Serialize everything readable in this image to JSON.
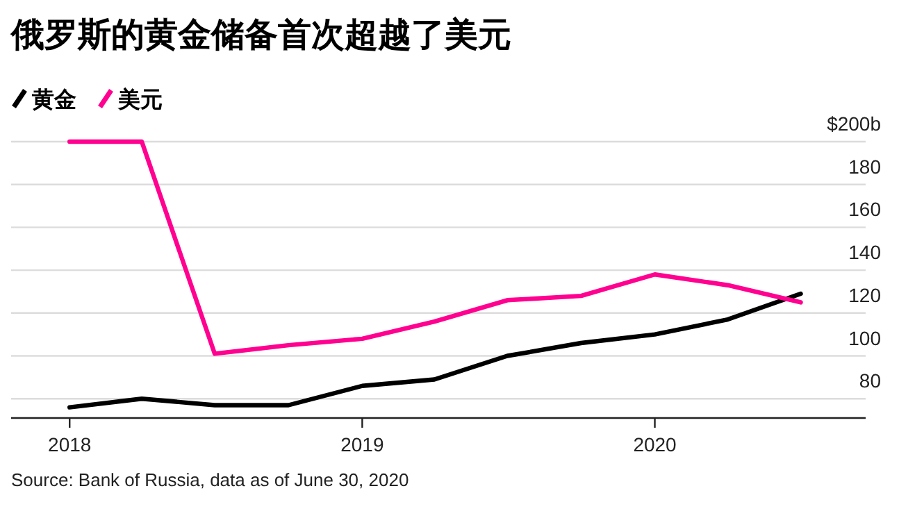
{
  "chart_data": {
    "type": "line",
    "title": "俄罗斯的黄金储备首次超越了美元",
    "x": [
      "2018-01",
      "2018-04",
      "2018-07",
      "2018-10",
      "2019-01",
      "2019-04",
      "2019-07",
      "2019-10",
      "2020-01",
      "2020-04",
      "2020-07"
    ],
    "series": [
      {
        "name": "黄金",
        "color": "#000000",
        "values": [
          76,
          80,
          77,
          77,
          86,
          89,
          100,
          106,
          110,
          117,
          129
        ]
      },
      {
        "name": "美元",
        "color": "#ff0090",
        "values": [
          200,
          200,
          101,
          105,
          108,
          116,
          126,
          128,
          138,
          133,
          125
        ]
      }
    ],
    "xlim": [
      "2017-10-20",
      "2020-09-20"
    ],
    "xticks": [
      "2018",
      "2019",
      "2020"
    ],
    "ylim": [
      71,
      200
    ],
    "yticks": [
      80,
      100,
      120,
      140,
      160,
      180,
      {
        "value": 200,
        "label": "$200b"
      }
    ],
    "grid": "y",
    "legend": "top left",
    "line_style": "solid",
    "marker": "none",
    "annotations": [
      "Source: Bank of Russia, data as of June 30, 2020"
    ]
  }
}
